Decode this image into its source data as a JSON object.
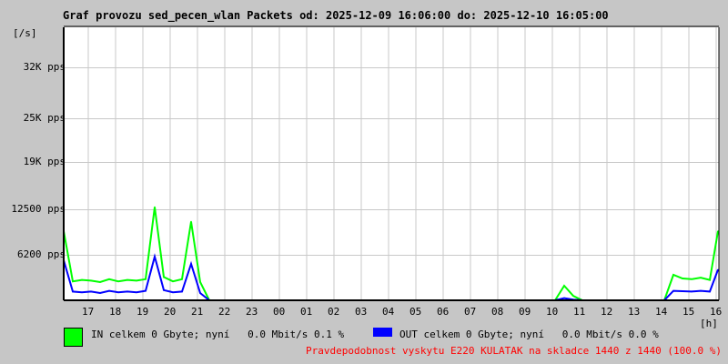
{
  "chart_data": {
    "type": "line",
    "title": "Graf provozu sed_pecen_wlan Packets od: 2025-12-09 16:06:00 do: 2025-12-10 16:05:00",
    "ylabel": "[/s]",
    "xlabel": "[h]",
    "ylim": [
      0,
      37500
    ],
    "grid": true,
    "y_ticks": [
      {
        "value": 6200,
        "label": "6200 pps"
      },
      {
        "value": 12500,
        "label": "12500 pps"
      },
      {
        "value": 19000,
        "label": "19K pps"
      },
      {
        "value": 25000,
        "label": "25K pps"
      },
      {
        "value": 32000,
        "label": "32K pps"
      }
    ],
    "x_ticks": [
      "17",
      "18",
      "19",
      "20",
      "21",
      "22",
      "23",
      "00",
      "01",
      "02",
      "03",
      "04",
      "05",
      "06",
      "07",
      "08",
      "09",
      "10",
      "11",
      "12",
      "13",
      "14",
      "15",
      "16"
    ],
    "x_start": "16:06",
    "x_end": "16:05",
    "x_step_minutes": 20,
    "series": [
      {
        "name": "IN",
        "color": "#00ff00",
        "values": [
          9500,
          2600,
          2800,
          2700,
          2500,
          2900,
          2600,
          2800,
          2700,
          2900,
          12800,
          3200,
          2600,
          2900,
          10800,
          2500,
          0,
          0,
          0,
          0,
          0,
          0,
          0,
          0,
          0,
          0,
          0,
          0,
          0,
          0,
          0,
          0,
          0,
          0,
          0,
          0,
          0,
          0,
          0,
          0,
          0,
          0,
          0,
          0,
          0,
          0,
          0,
          0,
          0,
          0,
          0,
          0,
          0,
          0,
          0,
          2000,
          600,
          0,
          0,
          0,
          0,
          0,
          0,
          0,
          0,
          0,
          0,
          3500,
          3000,
          2900,
          3100,
          2800,
          9500
        ]
      },
      {
        "name": "OUT",
        "color": "#0000ff",
        "values": [
          5500,
          1200,
          1100,
          1200,
          1000,
          1300,
          1100,
          1200,
          1100,
          1300,
          6000,
          1400,
          1100,
          1200,
          5000,
          1000,
          0,
          0,
          0,
          0,
          0,
          0,
          0,
          0,
          0,
          0,
          0,
          0,
          0,
          0,
          0,
          0,
          0,
          0,
          0,
          0,
          0,
          0,
          0,
          0,
          0,
          0,
          0,
          0,
          0,
          0,
          0,
          0,
          0,
          0,
          0,
          0,
          0,
          0,
          0,
          300,
          100,
          0,
          0,
          0,
          0,
          0,
          0,
          0,
          0,
          0,
          0,
          1300,
          1250,
          1200,
          1300,
          1200,
          4200
        ]
      }
    ]
  },
  "legend": {
    "in_text": "IN celkem 0 Gbyte; nyní   0.0 Mbit/s 0.1 %",
    "out_text": "OUT celkem 0 Gbyte; nyní   0.0 Mbit/s 0.0 %",
    "in_color": "#00ff00",
    "out_color": "#0000ff"
  },
  "footer": {
    "text": "Pravdepodobnost vyskytu E220 KULATAK na skladce 1440 z 1440 (100.0 %)",
    "color": "#ff0000"
  }
}
